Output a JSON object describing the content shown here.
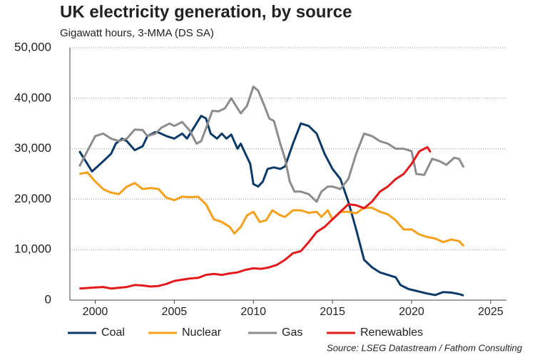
{
  "chart_data": {
    "type": "line",
    "title": "UK electricity generation, by source",
    "subtitle": "Gigawatt hours, 3-MMA (DS SA)",
    "source": "Source: LSEG Datastream / Fathom Consulting",
    "xlim": [
      1998.4,
      2026
    ],
    "xticks": [
      2000,
      2005,
      2010,
      2015,
      2020,
      2025
    ],
    "ylim": [
      0,
      50000
    ],
    "yticks": [
      0,
      {
        "value": 10000,
        "label": "10,000"
      },
      {
        "value": 20000,
        "label": "20,000"
      },
      {
        "value": 30000,
        "label": "30,000"
      },
      {
        "value": 40000,
        "label": "40,000"
      },
      {
        "value": 50000,
        "label": "50,000"
      }
    ],
    "grid": true,
    "series": [
      {
        "name": "Coal",
        "color": "#0b3a68",
        "x": [
          1999,
          1999.5,
          1999.8,
          2000.5,
          2001,
          2001.3,
          2001.7,
          2002,
          2002.5,
          2003,
          2003.3,
          2003.8,
          2004,
          2004.5,
          2005,
          2005.5,
          2005.8,
          2006.2,
          2006.7,
          2007,
          2007.3,
          2007.7,
          2008,
          2008.3,
          2008.6,
          2009,
          2009.2,
          2009.5,
          2009.8,
          2010,
          2010.3,
          2010.6,
          2010.9,
          2011.3,
          2011.7,
          2012,
          2012.5,
          2013,
          2013.5,
          2014,
          2014.5,
          2015,
          2015.5,
          2016,
          2016.5,
          2017,
          2017.5,
          2018,
          2018.5,
          2019,
          2019.3,
          2019.8,
          2020.2,
          2021,
          2021.5,
          2022,
          2022.5,
          2023,
          2023.3
        ],
        "values": [
          29500,
          27000,
          25500,
          27500,
          29000,
          31000,
          32000,
          31500,
          29700,
          30500,
          32500,
          33300,
          33200,
          32500,
          32000,
          33000,
          32000,
          34000,
          36500,
          36000,
          33000,
          32000,
          33000,
          32000,
          32800,
          30000,
          31000,
          29000,
          27000,
          23000,
          22500,
          23500,
          26000,
          26300,
          26000,
          26500,
          31000,
          35000,
          34500,
          33000,
          29000,
          26000,
          24000,
          19500,
          14000,
          8000,
          6500,
          5500,
          5000,
          4500,
          3000,
          2200,
          1900,
          1300,
          1000,
          1600,
          1500,
          1200,
          900
        ]
      },
      {
        "name": "Nuclear",
        "color": "#f5a01a",
        "x": [
          1999,
          1999.5,
          2000,
          2000.5,
          2001,
          2001.5,
          2002,
          2002.5,
          2003,
          2003.5,
          2004,
          2004.5,
          2005,
          2005.5,
          2006,
          2006.5,
          2007,
          2007.5,
          2008,
          2008.5,
          2008.8,
          2009.2,
          2009.6,
          2010,
          2010.4,
          2010.8,
          2011.2,
          2011.7,
          2012,
          2012.5,
          2013,
          2013.5,
          2014,
          2014.3,
          2014.7,
          2015,
          2015.5,
          2016,
          2016.5,
          2017,
          2017.5,
          2018,
          2018.5,
          2019,
          2019.5,
          2020,
          2020.5,
          2021,
          2021.5,
          2022,
          2022.5,
          2023,
          2023.3
        ],
        "values": [
          25000,
          25300,
          23500,
          22000,
          21300,
          21000,
          22500,
          23200,
          22000,
          22200,
          22000,
          20300,
          19800,
          20500,
          20400,
          20500,
          19000,
          16000,
          15500,
          14500,
          13200,
          14500,
          16800,
          17500,
          15500,
          15800,
          17800,
          16800,
          16500,
          17800,
          17800,
          17300,
          17500,
          16500,
          17800,
          16000,
          17500,
          17500,
          17200,
          18300,
          18300,
          17500,
          17000,
          15800,
          14000,
          14000,
          13000,
          12500,
          12200,
          11500,
          12000,
          11700,
          10700
        ]
      },
      {
        "name": "Gas",
        "color": "#8c8c8c",
        "x": [
          1999,
          1999.5,
          2000,
          2000.5,
          2001,
          2001.5,
          2002,
          2002.5,
          2003,
          2003.3,
          2003.8,
          2004.2,
          2004.7,
          2005,
          2005.5,
          2006,
          2006.4,
          2006.7,
          2007,
          2007.4,
          2007.8,
          2008.2,
          2008.6,
          2008.9,
          2009.2,
          2009.6,
          2010,
          2010.3,
          2010.7,
          2011,
          2011.3,
          2011.7,
          2012,
          2012.3,
          2012.6,
          2013,
          2013.5,
          2014,
          2014.3,
          2014.7,
          2015,
          2015.5,
          2016,
          2016.5,
          2017,
          2017.5,
          2018,
          2018.5,
          2019,
          2019.5,
          2020,
          2020.3,
          2020.8,
          2021.3,
          2021.8,
          2022.2,
          2022.7,
          2023,
          2023.3
        ],
        "values": [
          26500,
          29500,
          32500,
          33000,
          32000,
          31500,
          32000,
          33800,
          33700,
          32500,
          33000,
          34200,
          35000,
          34500,
          35300,
          33500,
          31000,
          31500,
          34000,
          37500,
          37400,
          38000,
          40000,
          38500,
          37000,
          38500,
          42300,
          41500,
          38500,
          36000,
          35500,
          31000,
          28000,
          23500,
          21500,
          21500,
          21000,
          19500,
          21500,
          22500,
          22500,
          22000,
          24000,
          29000,
          33000,
          32500,
          31500,
          31000,
          30000,
          30000,
          29500,
          25000,
          24800,
          28000,
          27500,
          26800,
          28200,
          28000,
          26300
        ]
      },
      {
        "name": "Renewables",
        "color": "#e3191c",
        "x": [
          1999,
          2000,
          2000.5,
          2001,
          2002,
          2002.5,
          2003,
          2003.5,
          2004,
          2004.5,
          2005,
          2006,
          2006.5,
          2007,
          2007.5,
          2008,
          2008.5,
          2009,
          2009.5,
          2010,
          2010.5,
          2011,
          2011.5,
          2012,
          2012.5,
          2013,
          2013.5,
          2014,
          2014.5,
          2015,
          2015.5,
          2016,
          2016.5,
          2017,
          2017.5,
          2018,
          2018.5,
          2019,
          2019.5,
          2020,
          2020.5,
          2021,
          2021.2
        ],
        "values": [
          2300,
          2500,
          2600,
          2300,
          2600,
          3000,
          2900,
          2700,
          2800,
          3200,
          3800,
          4300,
          4400,
          5000,
          5200,
          5000,
          5300,
          5500,
          6000,
          6300,
          6200,
          6500,
          7000,
          8000,
          9300,
          9700,
          11500,
          13500,
          14500,
          16000,
          17500,
          19000,
          18800,
          18200,
          19500,
          21500,
          22500,
          24000,
          25000,
          27000,
          29500,
          30300,
          29300
        ]
      }
    ]
  }
}
